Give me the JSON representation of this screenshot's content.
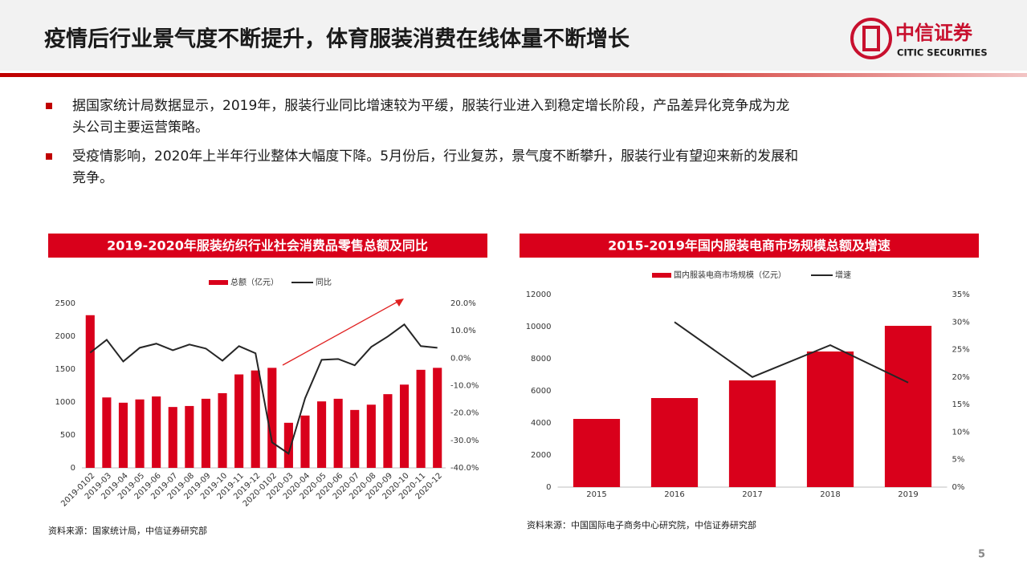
{
  "header": {
    "title": "疫情后行业景气度不断提升，体育服装消费在线体量不断增长",
    "logo_cn": "中信证券",
    "logo_en": "CITIC SECURITIES"
  },
  "bullets": [
    [
      "据国家统计局数据显示，2019年，服装行业同比增速较为平缓，服装行业进入到稳定增长阶段，产品差异化竞争成为龙",
      "头公司主要运营策略。"
    ],
    [
      "受疫情影响，2020年上半年行业整体大幅度下降。5月份后，行业复苏，景气度不断攀升，服装行业有望迎来新的发展和",
      "竞争。"
    ]
  ],
  "chart_data": [
    {
      "type": "bar-line",
      "title": "2019-2020年服装纺织行业社会消费品零售总额及同比",
      "categories": [
        "2019-0102",
        "2019-03",
        "2019-04",
        "2019-05",
        "2019-06",
        "2019-07",
        "2019-08",
        "2019-09",
        "2019-10",
        "2019-11",
        "2019-12",
        "2020-0102",
        "2020-03",
        "2020-04",
        "2020-05",
        "2020-06",
        "2020-07",
        "2020-08",
        "2020-09",
        "2020-10",
        "2020-11",
        "2020-12"
      ],
      "series": [
        {
          "name": "总额（亿元）",
          "color": "#d9001b",
          "axis": "y",
          "values": [
            2320,
            1070,
            990,
            1040,
            1085,
            925,
            940,
            1050,
            1135,
            1420,
            1480,
            1520,
            685,
            795,
            1010,
            1050,
            880,
            960,
            1120,
            1265,
            1490,
            1520
          ]
        },
        {
          "name": "同比",
          "color": "#262626",
          "axis": "y2",
          "values": [
            2.0,
            6.7,
            -1.2,
            3.8,
            5.3,
            2.9,
            5.0,
            3.5,
            -0.9,
            4.4,
            1.8,
            -30.7,
            -34.8,
            -14.6,
            -0.6,
            -0.3,
            -2.6,
            4.1,
            7.9,
            12.3,
            4.4,
            3.8
          ]
        }
      ],
      "ylim": [
        0,
        2500
      ],
      "yticks": [
        0,
        500,
        1000,
        1500,
        2000,
        2500
      ],
      "y2lim": [
        -40,
        20
      ],
      "y2ticks": [
        {
          "value": 20,
          "label": "20.0%"
        },
        {
          "value": 10,
          "label": "10.0%"
        },
        {
          "value": 0,
          "label": "0.0%"
        },
        {
          "value": -10,
          "label": "-10.0%"
        },
        {
          "value": -20,
          "label": "-20.0%"
        },
        {
          "value": -30,
          "label": "-30.0%"
        },
        {
          "value": -40,
          "label": "-40.0%"
        }
      ],
      "grid": false,
      "legend": "top",
      "source": "资料来源：国家统计局，中信证券研究部"
    },
    {
      "type": "bar-line",
      "title": "2015-2019年国内服装电商市场规模总额及增速",
      "categories": [
        "2015",
        "2016",
        "2017",
        "2018",
        "2019"
      ],
      "series": [
        {
          "name": "国内服装电商市场规模（亿元）",
          "color": "#d9001b",
          "axis": "y",
          "values": [
            4250,
            5550,
            6650,
            8450,
            10050
          ]
        },
        {
          "name": "增速",
          "color": "#262626",
          "axis": "y2",
          "values": [
            null,
            30,
            20,
            25.8,
            19
          ]
        }
      ],
      "ylim": [
        0,
        12000
      ],
      "yticks": [
        0,
        2000,
        4000,
        6000,
        8000,
        10000,
        12000
      ],
      "y2lim": [
        0,
        35
      ],
      "y2ticks": [
        {
          "value": 0,
          "label": "0%"
        },
        {
          "value": 5,
          "label": "5%"
        },
        {
          "value": 10,
          "label": "10%"
        },
        {
          "value": 15,
          "label": "15%"
        },
        {
          "value": 20,
          "label": "20%"
        },
        {
          "value": 25,
          "label": "25%"
        },
        {
          "value": 30,
          "label": "30%"
        },
        {
          "value": 35,
          "label": "35%"
        }
      ],
      "grid": false,
      "legend": "top",
      "source": "资料来源：中国国际电子商务中心研究院，中信证券研究部"
    }
  ],
  "page_number": "5"
}
